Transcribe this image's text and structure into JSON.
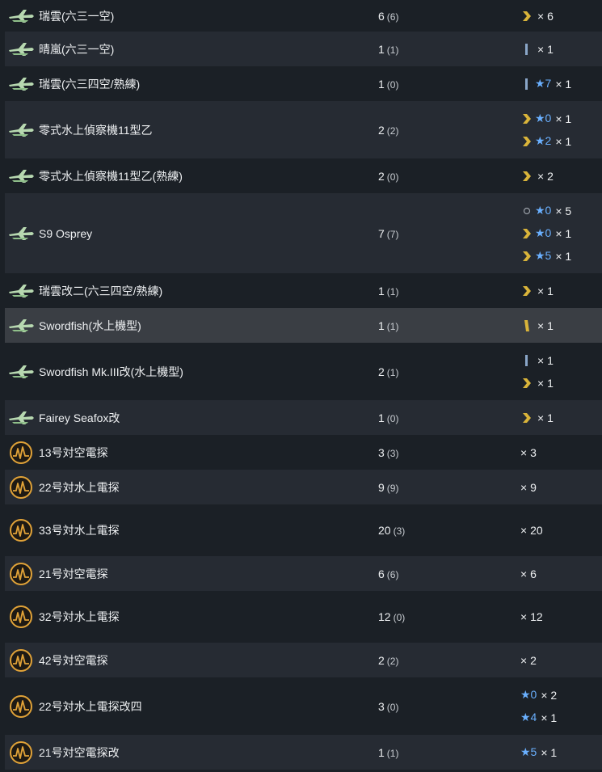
{
  "colors": {
    "row_odd": "#1b2026",
    "row_even": "#262b33",
    "row_highlight": "#3a3e44",
    "star": "#6ab0ff",
    "chevron_gold": "#d9b43a",
    "radar_orange": "#e0a238",
    "seaplane_green": "#b7d8b0"
  },
  "rows": [
    {
      "name": "瑞雲(六三一空)",
      "count": "6",
      "sub": "(6)",
      "icon": "seaplane-icon",
      "prof": [
        {
          "icon": "chevron",
          "star": "",
          "mult": "× 6"
        }
      ]
    },
    {
      "name": "晴嵐(六三一空)",
      "count": "1",
      "sub": "(1)",
      "icon": "seaplane-icon",
      "prof": [
        {
          "icon": "bar-blue",
          "star": "",
          "mult": "× 1"
        }
      ]
    },
    {
      "name": "瑞雲(六三四空/熟練)",
      "count": "1",
      "sub": "(0)",
      "icon": "seaplane-icon",
      "prof": [
        {
          "icon": "bar-blue",
          "star": "★7",
          "mult": "× 1"
        }
      ]
    },
    {
      "name": "零式水上偵察機11型乙",
      "count": "2",
      "sub": "(2)",
      "icon": "seaplane-icon",
      "prof": [
        {
          "icon": "chevron",
          "star": "★0",
          "mult": "× 1"
        },
        {
          "icon": "chevron",
          "star": "★2",
          "mult": "× 1"
        }
      ]
    },
    {
      "name": "零式水上偵察機11型乙(熟練)",
      "count": "2",
      "sub": "(0)",
      "icon": "seaplane-icon",
      "prof": [
        {
          "icon": "chevron",
          "star": "",
          "mult": "× 2"
        }
      ]
    },
    {
      "name": "S9 Osprey",
      "count": "7",
      "sub": "(7)",
      "icon": "seaplane-icon",
      "prof": [
        {
          "icon": "circle",
          "star": "★0",
          "mult": "× 5"
        },
        {
          "icon": "chevron",
          "star": "★0",
          "mult": "× 1"
        },
        {
          "icon": "chevron",
          "star": "★5",
          "mult": "× 1"
        }
      ]
    },
    {
      "name": "瑞雲改二(六三四空/熟練)",
      "count": "1",
      "sub": "(1)",
      "icon": "seaplane-icon",
      "prof": [
        {
          "icon": "chevron",
          "star": "",
          "mult": "× 1"
        }
      ]
    },
    {
      "name": "Swordfish(水上機型)",
      "count": "1",
      "sub": "(1)",
      "icon": "seaplane-icon",
      "prof": [
        {
          "icon": "bar-gold",
          "star": "",
          "mult": "× 1"
        }
      ]
    },
    {
      "name": "Swordfish Mk.III改(水上機型)",
      "count": "2",
      "sub": "(1)",
      "icon": "seaplane-icon",
      "prof": [
        {
          "icon": "bar-blue",
          "star": "",
          "mult": "× 1"
        },
        {
          "icon": "chevron",
          "star": "",
          "mult": "× 1"
        }
      ]
    },
    {
      "name": "Fairey Seafox改",
      "count": "1",
      "sub": "(0)",
      "icon": "seaplane-icon",
      "prof": [
        {
          "icon": "chevron",
          "star": "",
          "mult": "× 1"
        }
      ]
    },
    {
      "name": "13号対空電探",
      "count": "3",
      "sub": "(3)",
      "icon": "radar-icon",
      "prof": [
        {
          "icon": "",
          "star": "",
          "mult": "× 3"
        }
      ]
    },
    {
      "name": "22号対水上電探",
      "count": "9",
      "sub": "(9)",
      "icon": "radar-icon",
      "prof": [
        {
          "icon": "",
          "star": "",
          "mult": "× 9"
        }
      ]
    },
    {
      "name": "33号対水上電探",
      "count": "20",
      "sub": "(3)",
      "icon": "radar-icon",
      "prof": [
        {
          "icon": "",
          "star": "",
          "mult": "× 20"
        }
      ]
    },
    {
      "name": "21号対空電探",
      "count": "6",
      "sub": "(6)",
      "icon": "radar-icon",
      "prof": [
        {
          "icon": "",
          "star": "",
          "mult": "× 6"
        }
      ]
    },
    {
      "name": "32号対水上電探",
      "count": "12",
      "sub": "(0)",
      "icon": "radar-icon",
      "prof": [
        {
          "icon": "",
          "star": "",
          "mult": "× 12"
        }
      ]
    },
    {
      "name": "42号対空電探",
      "count": "2",
      "sub": "(2)",
      "icon": "radar-icon",
      "prof": [
        {
          "icon": "",
          "star": "",
          "mult": "× 2"
        }
      ]
    },
    {
      "name": "22号対水上電探改四",
      "count": "3",
      "sub": "(0)",
      "icon": "radar-icon",
      "prof": [
        {
          "icon": "",
          "star": "★0",
          "mult": "× 2"
        },
        {
          "icon": "",
          "star": "★4",
          "mult": "× 1"
        }
      ]
    },
    {
      "name": "21号対空電探改",
      "count": "1",
      "sub": "(1)",
      "icon": "radar-icon",
      "prof": [
        {
          "icon": "",
          "star": "★5",
          "mult": "× 1"
        }
      ]
    }
  ]
}
